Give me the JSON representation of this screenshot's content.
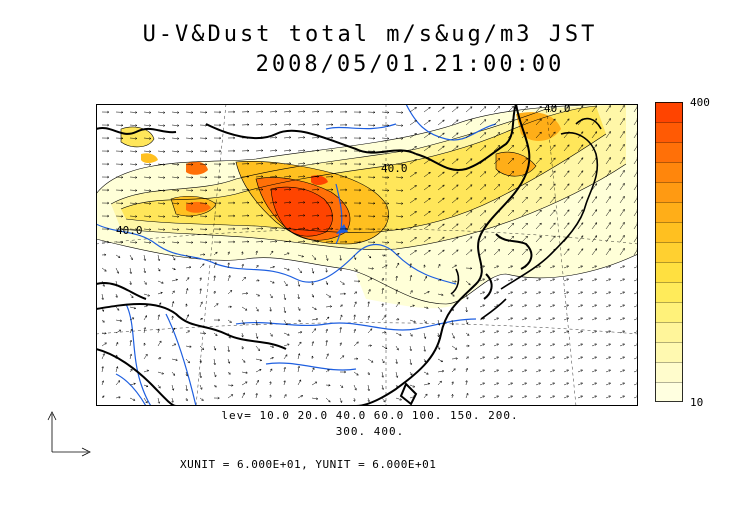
{
  "title": {
    "line1": "U-V&Dust total m/s&ug/m3 JST",
    "line2": "2008/05/01.21:00:00"
  },
  "colorbar": {
    "max_label": "400",
    "min_label": "10",
    "colors": [
      "#ffffe0",
      "#fffccc",
      "#fff9b0",
      "#fff59a",
      "#fff27a",
      "#ffeb5a",
      "#ffe040",
      "#ffd030",
      "#ffc020",
      "#ffae18",
      "#ff9a12",
      "#ff860c",
      "#ff7008",
      "#ff5a04",
      "#ff4400"
    ]
  },
  "contour_levels": {
    "line1": "lev= 10.0 20.0 40.0 60.0 100. 150. 200.",
    "line2": "300. 400."
  },
  "units": {
    "text": "XUNIT = 6.000E+01, YUNIT = 6.000E+01"
  },
  "map_labels": [
    {
      "name": "contour-label-40-north",
      "text": "40.0"
    },
    {
      "name": "contour-label-40-center",
      "text": "40.0"
    },
    {
      "name": "contour-label-40-west",
      "text": "40.0"
    }
  ]
}
